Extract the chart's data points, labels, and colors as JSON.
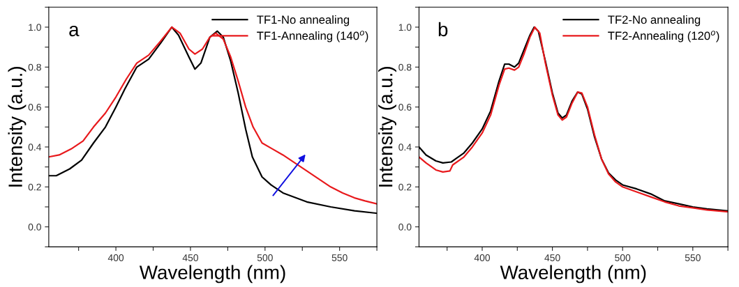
{
  "chart_data": [
    {
      "type": "line",
      "xlabel": "Wavelength (nm)",
      "ylabel": "Intensity (a.u.)",
      "annotations": [
        "a"
      ],
      "legend": "top right",
      "grid": false,
      "marker": "none",
      "line_style": "solid",
      "xlim": [
        355,
        575
      ],
      "ylim": [
        -0.1,
        1.1
      ],
      "xticks": [
        {
          "value": 375,
          "label": null
        },
        400,
        {
          "value": 425,
          "label": null
        },
        450,
        {
          "value": 475,
          "label": null
        },
        500,
        {
          "value": 525,
          "label": null
        },
        550,
        {
          "value": 575,
          "label": null
        }
      ],
      "yticks": [
        {
          "value": -0.1,
          "label": null
        },
        {
          "value": 0,
          "label": "0.0"
        },
        {
          "value": 0.1,
          "label": null
        },
        0.2,
        {
          "value": 0.3,
          "label": null
        },
        0.4,
        {
          "value": 0.5,
          "label": null
        },
        0.6,
        {
          "value": 0.7,
          "label": null
        },
        0.8,
        {
          "value": 0.9,
          "label": null
        },
        {
          "value": 1,
          "label": "1.0"
        },
        {
          "value": 1.1,
          "label": null
        }
      ],
      "series": [
        {
          "name": "TF1-No annealing",
          "color": "#000000",
          "x": [
            355,
            360,
            369,
            377,
            385,
            393,
            400,
            406,
            414,
            422,
            430,
            437.5,
            442,
            449,
            453,
            457,
            463,
            468,
            472,
            477,
            482,
            487,
            491.5,
            498,
            504,
            512,
            528,
            544,
            560,
            575
          ],
          "values": [
            0.256,
            0.256,
            0.29,
            0.334,
            0.42,
            0.5,
            0.6,
            0.69,
            0.8,
            0.84,
            0.92,
            1.0,
            0.96,
            0.85,
            0.79,
            0.82,
            0.95,
            0.98,
            0.95,
            0.83,
            0.67,
            0.49,
            0.35,
            0.25,
            0.21,
            0.17,
            0.125,
            0.1,
            0.08,
            0.068
          ]
        },
        {
          "name": "TF1-Annealing (140$^{o}$)",
          "color": "#e8191c",
          "x": [
            355,
            362,
            370,
            378,
            385,
            393,
            400,
            407,
            414,
            422,
            430,
            437.5,
            443,
            449,
            453,
            458,
            463,
            467,
            472,
            477,
            482,
            487,
            492,
            498,
            505,
            512,
            520,
            528,
            536,
            544,
            552,
            560,
            567,
            575
          ],
          "values": [
            0.35,
            0.36,
            0.39,
            0.43,
            0.5,
            0.57,
            0.65,
            0.74,
            0.82,
            0.86,
            0.93,
            1.0,
            0.97,
            0.89,
            0.865,
            0.89,
            0.95,
            0.97,
            0.94,
            0.85,
            0.73,
            0.6,
            0.5,
            0.42,
            0.39,
            0.36,
            0.32,
            0.28,
            0.24,
            0.2,
            0.17,
            0.145,
            0.13,
            0.115
          ]
        }
      ]
    },
    {
      "type": "line",
      "xlabel": "Wavelength (nm)",
      "ylabel": "Intensity (a.u.)",
      "annotations": [
        "b"
      ],
      "legend": "top right",
      "grid": false,
      "marker": "none",
      "line_style": "solid",
      "xlim": [
        355,
        575
      ],
      "ylim": [
        -0.1,
        1.1
      ],
      "xticks": [
        {
          "value": 375,
          "label": null
        },
        400,
        {
          "value": 425,
          "label": null
        },
        450,
        {
          "value": 475,
          "label": null
        },
        500,
        {
          "value": 525,
          "label": null
        },
        550,
        {
          "value": 575,
          "label": null
        }
      ],
      "yticks": [
        {
          "value": -0.1,
          "label": null
        },
        {
          "value": 0,
          "label": "0.0"
        },
        {
          "value": 0.1,
          "label": null
        },
        0.2,
        {
          "value": 0.3,
          "label": null
        },
        0.4,
        {
          "value": 0.5,
          "label": null
        },
        0.6,
        {
          "value": 0.7,
          "label": null
        },
        0.8,
        {
          "value": 0.9,
          "label": null
        },
        {
          "value": 1,
          "label": "1.0"
        },
        {
          "value": 1.1,
          "label": null
        }
      ],
      "series": [
        {
          "name": "TF2-No annealing",
          "color": "#000000",
          "x": [
            355,
            360,
            367,
            372,
            378,
            381,
            387,
            393,
            400,
            406,
            412,
            416,
            419,
            423,
            426,
            430,
            434,
            437,
            440,
            445,
            450,
            454,
            457,
            460,
            464,
            468,
            471,
            475,
            480,
            485,
            490,
            495,
            500,
            510,
            520,
            530,
            540,
            550,
            560,
            575
          ],
          "values": [
            0.4,
            0.36,
            0.33,
            0.32,
            0.325,
            0.34,
            0.37,
            0.42,
            0.49,
            0.58,
            0.73,
            0.815,
            0.815,
            0.8,
            0.82,
            0.89,
            0.96,
            1.0,
            0.98,
            0.83,
            0.67,
            0.57,
            0.545,
            0.56,
            0.63,
            0.675,
            0.665,
            0.59,
            0.45,
            0.34,
            0.27,
            0.235,
            0.21,
            0.19,
            0.165,
            0.13,
            0.115,
            0.1,
            0.09,
            0.08
          ]
        },
        {
          "name": "TF2-Annealing (120$^{o}$)",
          "color": "#e8191c",
          "x": [
            355,
            360,
            367,
            372,
            377,
            379,
            387,
            393,
            400,
            406,
            412,
            416,
            419,
            423,
            426,
            430,
            434,
            437.5,
            441,
            445,
            450,
            454,
            457,
            460,
            464,
            468,
            471,
            475,
            480,
            485,
            490,
            495,
            500,
            510,
            520,
            530,
            540,
            550,
            560,
            575
          ],
          "values": [
            0.35,
            0.32,
            0.285,
            0.275,
            0.28,
            0.31,
            0.35,
            0.4,
            0.47,
            0.56,
            0.71,
            0.79,
            0.795,
            0.785,
            0.8,
            0.87,
            0.95,
            1.0,
            0.97,
            0.82,
            0.66,
            0.56,
            0.535,
            0.55,
            0.62,
            0.675,
            0.67,
            0.6,
            0.46,
            0.34,
            0.265,
            0.225,
            0.2,
            0.175,
            0.15,
            0.125,
            0.105,
            0.095,
            0.085,
            0.075
          ]
        }
      ]
    }
  ]
}
